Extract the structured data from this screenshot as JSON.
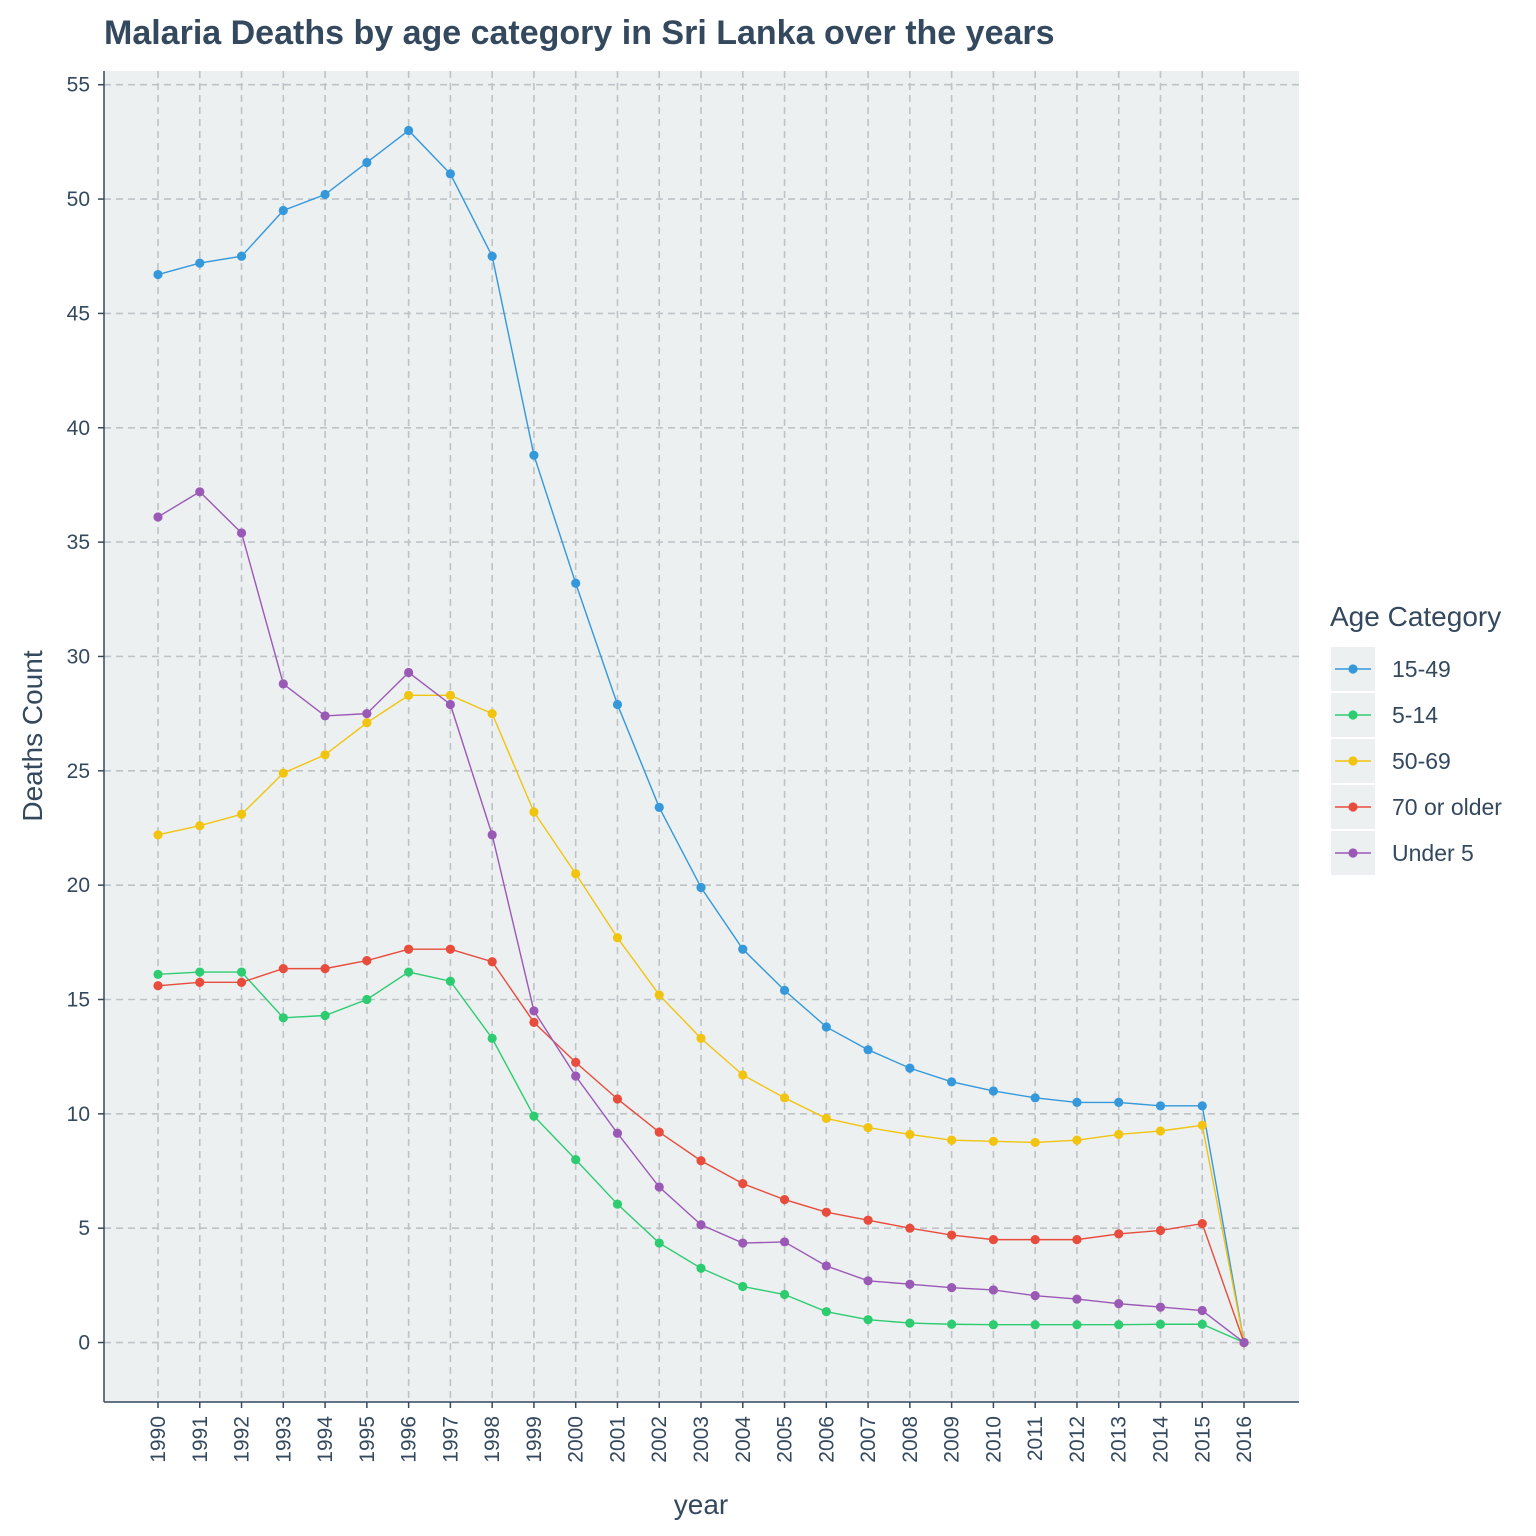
{
  "chart_data": {
    "type": "line",
    "title": "Malaria Deaths by age category in Sri Lanka over the years",
    "xlabel": "year",
    "ylabel": "Deaths Count",
    "x": [
      "1990",
      "1991",
      "1992",
      "1993",
      "1994",
      "1995",
      "1996",
      "1997",
      "1998",
      "1999",
      "2000",
      "2001",
      "2002",
      "2003",
      "2004",
      "2005",
      "2006",
      "2007",
      "2008",
      "2009",
      "2010",
      "2011",
      "2012",
      "2013",
      "2014",
      "2015",
      "2016"
    ],
    "y_ticks": [
      "0",
      "5",
      "10",
      "15",
      "20",
      "25",
      "30",
      "35",
      "40",
      "45",
      "50",
      "55"
    ],
    "ylim": [
      -2.6,
      55.6
    ],
    "grid": true,
    "grid_style": "dashed",
    "panel_color": "#ecf0f1",
    "legend_title": "Age Category",
    "legend_position": "right",
    "series": [
      {
        "name": "15-49",
        "color": "#3498db",
        "values": [
          46.7,
          47.2,
          47.5,
          49.5,
          50.2,
          51.6,
          53.0,
          51.1,
          47.5,
          38.8,
          33.2,
          27.9,
          23.4,
          19.9,
          17.2,
          15.4,
          13.8,
          12.8,
          12.0,
          11.4,
          11.0,
          10.7,
          10.5,
          10.5,
          10.35,
          10.35,
          0
        ]
      },
      {
        "name": "5-14",
        "color": "#2ecc71",
        "values": [
          16.1,
          16.2,
          16.2,
          14.2,
          14.3,
          15.0,
          16.2,
          15.8,
          13.3,
          9.9,
          8.0,
          6.05,
          4.35,
          3.25,
          2.45,
          2.1,
          1.35,
          1.0,
          0.85,
          0.8,
          0.78,
          0.78,
          0.78,
          0.78,
          0.8,
          0.8,
          0
        ]
      },
      {
        "name": "50-69",
        "color": "#f1c40f",
        "values": [
          22.2,
          22.6,
          23.1,
          24.9,
          25.7,
          27.1,
          28.3,
          28.3,
          27.5,
          23.2,
          20.5,
          17.7,
          15.2,
          13.3,
          11.7,
          10.7,
          9.8,
          9.4,
          9.1,
          8.85,
          8.8,
          8.75,
          8.85,
          9.1,
          9.25,
          9.5,
          0
        ]
      },
      {
        "name": "70 or older",
        "color": "#e74c3c",
        "values": [
          15.6,
          15.75,
          15.75,
          16.35,
          16.35,
          16.7,
          17.2,
          17.2,
          16.65,
          14.0,
          12.25,
          10.65,
          9.2,
          7.95,
          6.95,
          6.25,
          5.7,
          5.35,
          5.0,
          4.7,
          4.5,
          4.5,
          4.5,
          4.75,
          4.9,
          5.2,
          0
        ]
      },
      {
        "name": "Under 5",
        "color": "#9b59b6",
        "values": [
          36.1,
          37.2,
          35.4,
          28.8,
          27.4,
          27.5,
          29.3,
          27.9,
          22.2,
          14.5,
          11.65,
          9.15,
          6.8,
          5.15,
          4.35,
          4.4,
          3.35,
          2.7,
          2.55,
          2.4,
          2.3,
          2.05,
          1.9,
          1.7,
          1.55,
          1.4,
          0
        ]
      }
    ]
  }
}
